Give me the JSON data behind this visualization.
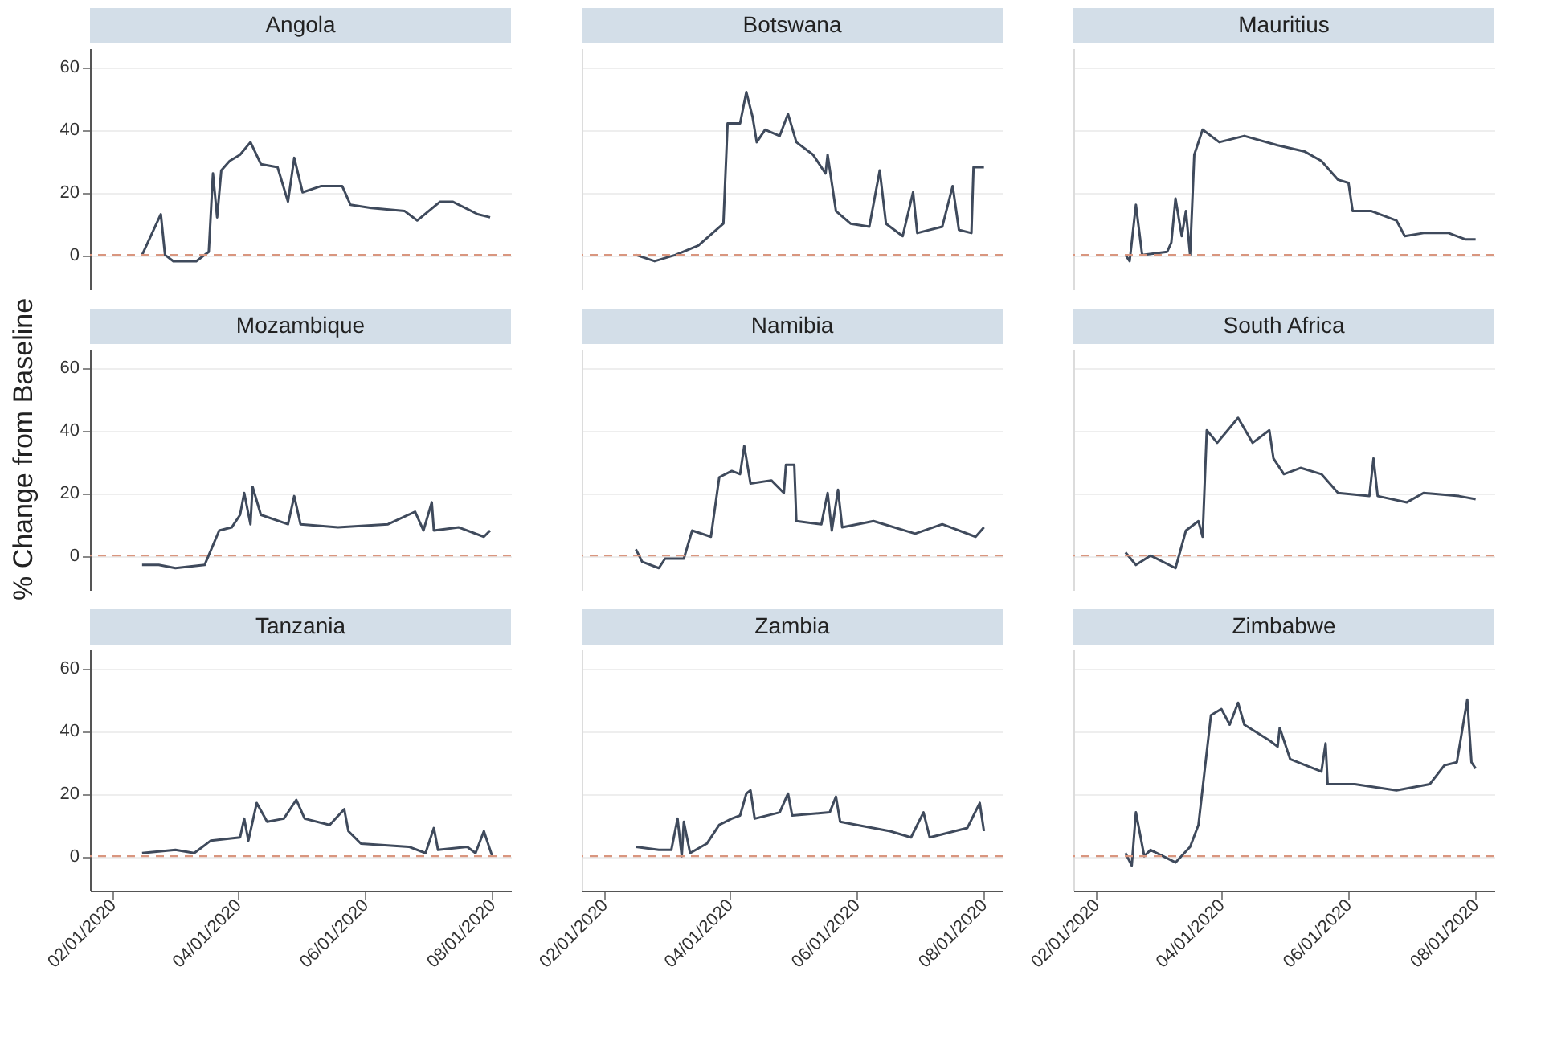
{
  "chart_data": [
    {
      "type": "line",
      "title": "Angola",
      "x": [
        "2020-02-15",
        "2020-02-24",
        "2020-02-26",
        "2020-03-01",
        "2020-03-12",
        "2020-03-18",
        "2020-03-20",
        "2020-03-22",
        "2020-03-24",
        "2020-03-28",
        "2020-04-02",
        "2020-04-07",
        "2020-04-12",
        "2020-04-20",
        "2020-04-25",
        "2020-04-28",
        "2020-05-02",
        "2020-05-11",
        "2020-05-21",
        "2020-05-25",
        "2020-06-04",
        "2020-06-20",
        "2020-06-26",
        "2020-07-07",
        "2020-07-13",
        "2020-07-19",
        "2020-07-25",
        "2020-07-31"
      ],
      "series": [
        {
          "color": "#3f4a5c",
          "values": [
            0,
            13,
            0,
            -2,
            -2,
            1,
            26,
            12,
            27,
            30,
            32,
            36,
            29,
            28,
            17,
            31,
            20,
            22,
            22,
            16,
            15,
            14,
            11,
            17,
            17,
            15,
            13,
            12
          ]
        }
      ],
      "xlim": [
        "2020-01-21",
        "2020-08-10"
      ],
      "ylim": [
        -11,
        66
      ],
      "yticks": [
        0,
        20,
        40,
        60
      ],
      "grid": "y",
      "ref_lines": [
        {
          "axis": "y",
          "value": 0,
          "color": "#d9967f",
          "line_style": "dashed"
        }
      ],
      "tick_labels": "y"
    },
    {
      "type": "line",
      "title": "Botswana",
      "x": [
        "2020-02-16",
        "2020-02-25",
        "2020-03-06",
        "2020-03-17",
        "2020-03-29",
        "2020-03-31",
        "2020-04-06",
        "2020-04-09",
        "2020-04-12",
        "2020-04-14",
        "2020-04-18",
        "2020-04-25",
        "2020-04-29",
        "2020-05-03",
        "2020-05-11",
        "2020-05-17",
        "2020-05-18",
        "2020-05-22",
        "2020-05-29",
        "2020-06-07",
        "2020-06-12",
        "2020-06-15",
        "2020-06-23",
        "2020-06-28",
        "2020-06-30",
        "2020-07-12",
        "2020-07-17",
        "2020-07-20",
        "2020-07-26",
        "2020-07-27",
        "2020-08-01"
      ],
      "series": [
        {
          "color": "#3f4a5c",
          "values": [
            0,
            -2,
            0,
            3,
            10,
            42,
            42,
            52,
            44,
            36,
            40,
            38,
            45,
            36,
            32,
            26,
            32,
            14,
            10,
            9,
            27,
            10,
            6,
            20,
            7,
            9,
            22,
            8,
            7,
            28,
            28
          ]
        }
      ],
      "xlim": [
        "2020-01-21",
        "2020-08-10"
      ],
      "ylim": [
        -11,
        66
      ],
      "yticks": [
        0,
        20,
        40,
        60
      ],
      "grid": "y",
      "ref_lines": [
        {
          "axis": "y",
          "value": 0,
          "color": "#d9967f",
          "line_style": "dashed"
        }
      ],
      "tick_labels": false
    },
    {
      "type": "line",
      "title": "Mauritius",
      "x": [
        "2020-02-15",
        "2020-02-17",
        "2020-02-20",
        "2020-02-23",
        "2020-03-06",
        "2020-03-08",
        "2020-03-10",
        "2020-03-13",
        "2020-03-15",
        "2020-03-17",
        "2020-03-19",
        "2020-03-23",
        "2020-03-31",
        "2020-04-12",
        "2020-04-28",
        "2020-05-11",
        "2020-05-19",
        "2020-05-27",
        "2020-06-01",
        "2020-06-03",
        "2020-06-12",
        "2020-06-24",
        "2020-06-28",
        "2020-07-07",
        "2020-07-19",
        "2020-07-27",
        "2020-08-01"
      ],
      "series": [
        {
          "color": "#3f4a5c",
          "values": [
            0,
            -2,
            16,
            0,
            1,
            4,
            18,
            6,
            14,
            0,
            32,
            40,
            36,
            38,
            35,
            33,
            30,
            24,
            23,
            14,
            14,
            11,
            6,
            7,
            7,
            5,
            5
          ]
        }
      ],
      "xlim": [
        "2020-01-21",
        "2020-08-10"
      ],
      "ylim": [
        -11,
        66
      ],
      "yticks": [
        0,
        20,
        40,
        60
      ],
      "grid": "y",
      "ref_lines": [
        {
          "axis": "y",
          "value": 0,
          "color": "#d9967f",
          "line_style": "dashed"
        }
      ],
      "tick_labels": false
    },
    {
      "type": "line",
      "title": "Mozambique",
      "ylabel": "% Change from Baseline",
      "x": [
        "2020-02-15",
        "2020-02-23",
        "2020-03-02",
        "2020-03-16",
        "2020-03-23",
        "2020-03-29",
        "2020-04-02",
        "2020-04-04",
        "2020-04-07",
        "2020-04-08",
        "2020-04-12",
        "2020-04-25",
        "2020-04-28",
        "2020-05-01",
        "2020-05-19",
        "2020-06-12",
        "2020-06-25",
        "2020-06-29",
        "2020-07-03",
        "2020-07-04",
        "2020-07-16",
        "2020-07-28",
        "2020-07-31"
      ],
      "series": [
        {
          "color": "#3f4a5c",
          "values": [
            -3,
            -3,
            -4,
            -3,
            8,
            9,
            13,
            20,
            10,
            22,
            13,
            10,
            19,
            10,
            9,
            10,
            14,
            8,
            17,
            8,
            9,
            6,
            8
          ]
        }
      ],
      "xlim": [
        "2020-01-21",
        "2020-08-10"
      ],
      "ylim": [
        -11,
        66
      ],
      "yticks": [
        0,
        20,
        40,
        60
      ],
      "grid": "y",
      "ref_lines": [
        {
          "axis": "y",
          "value": 0,
          "color": "#d9967f",
          "line_style": "dashed"
        }
      ],
      "tick_labels": "y"
    },
    {
      "type": "line",
      "title": "Namibia",
      "x": [
        "2020-02-16",
        "2020-02-19",
        "2020-02-27",
        "2020-03-01",
        "2020-03-10",
        "2020-03-14",
        "2020-03-23",
        "2020-03-27",
        "2020-04-02",
        "2020-04-06",
        "2020-04-08",
        "2020-04-11",
        "2020-04-21",
        "2020-04-27",
        "2020-04-28",
        "2020-05-02",
        "2020-05-03",
        "2020-05-15",
        "2020-05-18",
        "2020-05-20",
        "2020-05-23",
        "2020-05-25",
        "2020-06-09",
        "2020-06-29",
        "2020-07-12",
        "2020-07-28",
        "2020-08-01"
      ],
      "series": [
        {
          "color": "#3f4a5c",
          "values": [
            2,
            -2,
            -4,
            -1,
            -1,
            8,
            6,
            25,
            27,
            26,
            35,
            23,
            24,
            20,
            29,
            29,
            11,
            10,
            20,
            8,
            21,
            9,
            11,
            7,
            10,
            6,
            9
          ]
        }
      ],
      "xlim": [
        "2020-01-21",
        "2020-08-10"
      ],
      "ylim": [
        -11,
        66
      ],
      "yticks": [
        0,
        20,
        40,
        60
      ],
      "grid": "y",
      "ref_lines": [
        {
          "axis": "y",
          "value": 0,
          "color": "#d9967f",
          "line_style": "dashed"
        }
      ],
      "tick_labels": false
    },
    {
      "type": "line",
      "title": "South Africa",
      "x": [
        "2020-02-15",
        "2020-02-20",
        "2020-02-27",
        "2020-03-10",
        "2020-03-15",
        "2020-03-21",
        "2020-03-23",
        "2020-03-25",
        "2020-03-30",
        "2020-04-09",
        "2020-04-16",
        "2020-04-24",
        "2020-04-26",
        "2020-05-01",
        "2020-05-09",
        "2020-05-19",
        "2020-05-27",
        "2020-06-11",
        "2020-06-13",
        "2020-06-15",
        "2020-06-29",
        "2020-07-07",
        "2020-07-24",
        "2020-08-01"
      ],
      "series": [
        {
          "color": "#3f4a5c",
          "values": [
            1,
            -3,
            0,
            -4,
            8,
            11,
            6,
            40,
            36,
            44,
            36,
            40,
            31,
            26,
            28,
            26,
            20,
            19,
            31,
            19,
            17,
            20,
            19,
            18
          ]
        }
      ],
      "xlim": [
        "2020-01-21",
        "2020-08-10"
      ],
      "ylim": [
        -11,
        66
      ],
      "yticks": [
        0,
        20,
        40,
        60
      ],
      "grid": "y",
      "ref_lines": [
        {
          "axis": "y",
          "value": 0,
          "color": "#d9967f",
          "line_style": "dashed"
        }
      ],
      "tick_labels": false
    },
    {
      "type": "line",
      "title": "Tanzania",
      "x": [
        "2020-02-15",
        "2020-03-02",
        "2020-03-11",
        "2020-03-19",
        "2020-04-02",
        "2020-04-04",
        "2020-04-06",
        "2020-04-10",
        "2020-04-15",
        "2020-04-23",
        "2020-04-29",
        "2020-05-03",
        "2020-05-15",
        "2020-05-22",
        "2020-05-24",
        "2020-05-30",
        "2020-06-22",
        "2020-06-30",
        "2020-07-04",
        "2020-07-06",
        "2020-07-20",
        "2020-07-24",
        "2020-07-28",
        "2020-08-01"
      ],
      "series": [
        {
          "color": "#3f4a5c",
          "values": [
            1,
            2,
            1,
            5,
            6,
            12,
            5,
            17,
            11,
            12,
            18,
            12,
            10,
            15,
            8,
            4,
            3,
            1,
            9,
            2,
            3,
            1,
            8,
            0
          ]
        }
      ],
      "xlim": [
        "2020-01-21",
        "2020-08-10"
      ],
      "xticks": [
        {
          "value": "2020-02-01",
          "label": "02/01/2020"
        },
        {
          "value": "2020-04-01",
          "label": "04/01/2020"
        },
        {
          "value": "2020-06-01",
          "label": "06/01/2020"
        },
        {
          "value": "2020-08-01",
          "label": "08/01/2020"
        }
      ],
      "ylim": [
        -11,
        66
      ],
      "yticks": [
        0,
        20,
        40,
        60
      ],
      "grid": "y",
      "ref_lines": [
        {
          "axis": "y",
          "value": 0,
          "color": "#d9967f",
          "line_style": "dashed"
        }
      ]
    },
    {
      "type": "line",
      "title": "Zambia",
      "x": [
        "2020-02-16",
        "2020-02-27",
        "2020-03-04",
        "2020-03-07",
        "2020-03-09",
        "2020-03-10",
        "2020-03-13",
        "2020-03-21",
        "2020-03-27",
        "2020-04-02",
        "2020-04-06",
        "2020-04-09",
        "2020-04-11",
        "2020-04-13",
        "2020-04-25",
        "2020-04-29",
        "2020-05-01",
        "2020-05-19",
        "2020-05-22",
        "2020-05-24",
        "2020-06-01",
        "2020-06-17",
        "2020-06-27",
        "2020-07-03",
        "2020-07-06",
        "2020-07-24",
        "2020-07-30",
        "2020-08-01"
      ],
      "series": [
        {
          "color": "#3f4a5c",
          "values": [
            3,
            2,
            2,
            12,
            0,
            11,
            1,
            4,
            10,
            12,
            13,
            20,
            21,
            12,
            14,
            20,
            13,
            14,
            19,
            11,
            10,
            8,
            6,
            14,
            6,
            9,
            17,
            8
          ]
        }
      ],
      "xlim": [
        "2020-01-21",
        "2020-08-10"
      ],
      "xticks": [
        {
          "value": "2020-02-01",
          "label": "02/01/2020"
        },
        {
          "value": "2020-04-01",
          "label": "04/01/2020"
        },
        {
          "value": "2020-06-01",
          "label": "06/01/2020"
        },
        {
          "value": "2020-08-01",
          "label": "08/01/2020"
        }
      ],
      "ylim": [
        -11,
        66
      ],
      "yticks": [
        0,
        20,
        40,
        60
      ],
      "grid": "y",
      "ref_lines": [
        {
          "axis": "y",
          "value": 0,
          "color": "#d9967f",
          "line_style": "dashed"
        }
      ],
      "tick_labels": "x"
    },
    {
      "type": "line",
      "title": "Zimbabwe",
      "x": [
        "2020-02-15",
        "2020-02-18",
        "2020-02-20",
        "2020-02-24",
        "2020-02-27",
        "2020-03-10",
        "2020-03-17",
        "2020-03-21",
        "2020-03-27",
        "2020-04-01",
        "2020-04-05",
        "2020-04-09",
        "2020-04-12",
        "2020-04-24",
        "2020-04-28",
        "2020-04-29",
        "2020-05-04",
        "2020-05-19",
        "2020-05-21",
        "2020-05-22",
        "2020-06-04",
        "2020-06-24",
        "2020-07-10",
        "2020-07-17",
        "2020-07-23",
        "2020-07-28",
        "2020-07-30",
        "2020-08-01"
      ],
      "series": [
        {
          "color": "#3f4a5c",
          "values": [
            1,
            -3,
            14,
            0,
            2,
            -2,
            3,
            10,
            45,
            47,
            42,
            49,
            42,
            37,
            35,
            41,
            31,
            27,
            36,
            23,
            23,
            21,
            23,
            29,
            30,
            50,
            30,
            28
          ]
        }
      ],
      "xlim": [
        "2020-01-21",
        "2020-08-10"
      ],
      "xticks": [
        {
          "value": "2020-02-01",
          "label": "02/01/2020"
        },
        {
          "value": "2020-04-01",
          "label": "04/01/2020"
        },
        {
          "value": "2020-06-01",
          "label": "06/01/2020"
        },
        {
          "value": "2020-08-01",
          "label": "08/01/2020"
        }
      ],
      "ylim": [
        -11,
        66
      ],
      "yticks": [
        0,
        20,
        40,
        60
      ],
      "grid": "y",
      "ref_lines": [
        {
          "axis": "y",
          "value": 0,
          "color": "#d9967f",
          "line_style": "dashed"
        }
      ],
      "tick_labels": "x"
    }
  ]
}
